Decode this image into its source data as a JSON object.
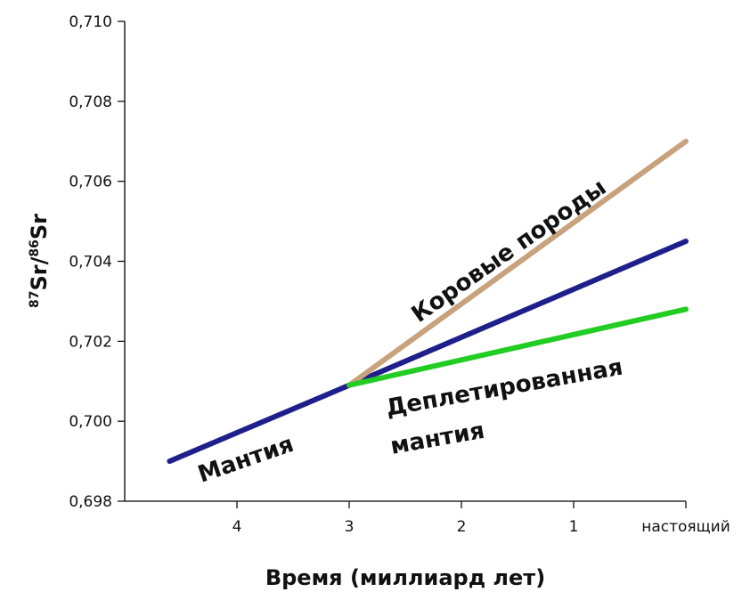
{
  "chart_data": {
    "type": "line",
    "xlabel": "Время (миллиард лет)",
    "ylabel": {
      "prefix1": "87",
      "text1": "Sr/",
      "prefix2": "86",
      "text2": "Sr"
    },
    "x_ticks": [
      {
        "value": 4,
        "label": "4"
      },
      {
        "value": 3,
        "label": "3"
      },
      {
        "value": 2,
        "label": "2"
      },
      {
        "value": 1,
        "label": "1"
      },
      {
        "value": 0,
        "label": "настоящий"
      }
    ],
    "y_ticks": [
      "0,698",
      "0,700",
      "0,702",
      "0,704",
      "0,706",
      "0,708",
      "0,710"
    ],
    "y_tick_values": [
      0.698,
      0.7,
      0.702,
      0.704,
      0.706,
      0.708,
      0.71
    ],
    "xlim": [
      5,
      0
    ],
    "ylim": [
      0.698,
      0.71
    ],
    "grid": false,
    "series": [
      {
        "key": "mantle",
        "color": "#1f1f8c",
        "x": [
          4.6,
          3.0,
          0.0
        ],
        "y": [
          0.699,
          0.7009,
          0.7045
        ]
      },
      {
        "key": "crust",
        "color": "#c8a27c",
        "x": [
          3.0,
          0.0
        ],
        "y": [
          0.7009,
          0.707
        ]
      },
      {
        "key": "depleted",
        "color": "#22cc22",
        "x": [
          3.0,
          0.0
        ],
        "y": [
          0.7009,
          0.7028
        ]
      }
    ],
    "annotations": [
      {
        "key": "mantle",
        "text": "Мантия"
      },
      {
        "key": "crust",
        "text": "Коровые породы"
      },
      {
        "key": "depleted1",
        "text": "Деплетированная"
      },
      {
        "key": "depleted2",
        "text": "мантия"
      }
    ]
  }
}
